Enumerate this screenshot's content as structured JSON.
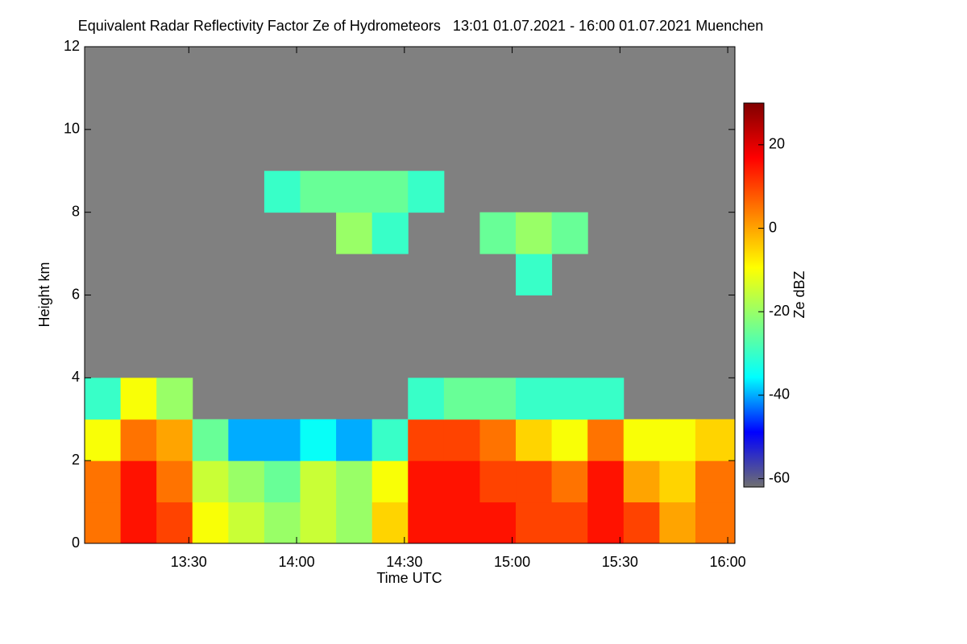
{
  "chart_data": {
    "type": "heatmap",
    "title": "Equivalent Radar Reflectivity Factor Ze of Hydrometeors   13:01 01.07.2021 - 16:00 01.07.2021 Muenchen",
    "xlabel": "Time UTC",
    "ylabel": "Height km",
    "colorbar_label": "Ze dBZ",
    "xlim": [
      781,
      962
    ],
    "xticks": [
      {
        "value": 810,
        "label": "13:30"
      },
      {
        "value": 840,
        "label": "14:00"
      },
      {
        "value": 870,
        "label": "14:30"
      },
      {
        "value": 900,
        "label": "15:00"
      },
      {
        "value": 930,
        "label": "15:30"
      },
      {
        "value": 960,
        "label": "16:00"
      }
    ],
    "ylim": [
      0,
      12
    ],
    "yticks": [
      0,
      2,
      4,
      6,
      8,
      10,
      12
    ],
    "x_edges": [
      781,
      791,
      801,
      811,
      821,
      831,
      841,
      851,
      861,
      871,
      881,
      891,
      901,
      911,
      921,
      931,
      941,
      951,
      962
    ],
    "y_edges": [
      0,
      1,
      2,
      3,
      4,
      5,
      6,
      7,
      8,
      9,
      10,
      11,
      12
    ],
    "z": [
      [
        5,
        15,
        10,
        -10,
        -15,
        -20,
        -15,
        -20,
        -5,
        15,
        15,
        15,
        10,
        10,
        15,
        10,
        0,
        5
      ],
      [
        5,
        15,
        5,
        -15,
        -20,
        -25,
        -15,
        -20,
        -10,
        15,
        15,
        10,
        10,
        5,
        15,
        0,
        -5,
        5
      ],
      [
        -10,
        5,
        0,
        -25,
        -40,
        -40,
        -35,
        -40,
        -30,
        10,
        10,
        5,
        -5,
        -10,
        5,
        -10,
        -10,
        -5
      ],
      [
        -30,
        -10,
        -20,
        null,
        null,
        null,
        null,
        null,
        null,
        -30,
        -25,
        -25,
        -30,
        -30,
        -30,
        null,
        null,
        null
      ],
      [
        null,
        null,
        null,
        null,
        null,
        null,
        null,
        null,
        null,
        null,
        null,
        null,
        null,
        null,
        null,
        null,
        null,
        null
      ],
      [
        null,
        null,
        null,
        null,
        null,
        null,
        null,
        null,
        null,
        null,
        null,
        null,
        null,
        null,
        null,
        null,
        null,
        null
      ],
      [
        null,
        null,
        null,
        null,
        null,
        null,
        null,
        null,
        null,
        null,
        null,
        null,
        -30,
        null,
        null,
        null,
        null,
        null
      ],
      [
        null,
        null,
        null,
        null,
        null,
        null,
        null,
        -20,
        -30,
        null,
        null,
        -25,
        -20,
        -25,
        null,
        null,
        null,
        null
      ],
      [
        null,
        null,
        null,
        null,
        null,
        -30,
        -25,
        -25,
        -25,
        -30,
        null,
        null,
        null,
        null,
        null,
        null,
        null,
        null
      ],
      [
        null,
        null,
        null,
        null,
        null,
        null,
        null,
        null,
        null,
        null,
        null,
        null,
        null,
        null,
        null,
        null,
        null,
        null
      ],
      [
        null,
        null,
        null,
        null,
        null,
        null,
        null,
        null,
        null,
        null,
        null,
        null,
        null,
        null,
        null,
        null,
        null,
        null
      ],
      [
        null,
        null,
        null,
        null,
        null,
        null,
        null,
        null,
        null,
        null,
        null,
        null,
        null,
        null,
        null,
        null,
        null,
        null
      ]
    ],
    "zlim": [
      -62,
      30
    ],
    "zticks": [
      -60,
      -40,
      -20,
      0,
      20
    ],
    "colors": [
      "#707070",
      "#0000ff",
      "#00ffff",
      "#80ff80",
      "#ffff00",
      "#ff8000",
      "#ff0000",
      "#800000"
    ],
    "background": "#808080"
  }
}
